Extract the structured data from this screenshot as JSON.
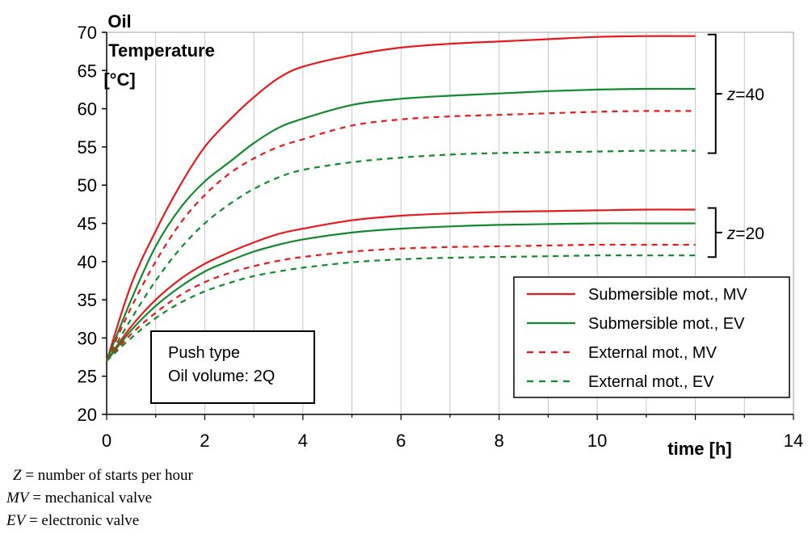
{
  "chart_data": {
    "type": "line",
    "ylabel_lines": [
      "Oil",
      "Temperature",
      "[°C]"
    ],
    "xlabel": "time [h]",
    "xlim": [
      0,
      14
    ],
    "ylim": [
      20,
      70
    ],
    "xticks": [
      "0",
      "2",
      "4",
      "6",
      "8",
      "10",
      "14"
    ],
    "yticks": [
      "20",
      "25",
      "30",
      "35",
      "40",
      "45",
      "50",
      "55",
      "60",
      "65",
      "70"
    ],
    "grid": "vertical",
    "groups": [
      {
        "label_prefix": "z",
        "label_value": "=40",
        "series": [
          {
            "name": "Submersible mot., MV",
            "color": "#e8191c",
            "dash": false,
            "x": [
              0,
              0.5,
              1,
              1.5,
              2,
              2.5,
              3,
              3.5,
              4,
              5,
              6,
              7,
              8,
              9,
              10,
              11,
              12
            ],
            "y": [
              27,
              37,
              44,
              50,
              55,
              58.5,
              61.5,
              64,
              65.5,
              67,
              68,
              68.5,
              68.8,
              69.1,
              69.4,
              69.5,
              69.5
            ]
          },
          {
            "name": "Submersible mot., EV",
            "color": "#108a2c",
            "dash": false,
            "x": [
              0,
              0.5,
              1,
              1.5,
              2,
              2.5,
              3,
              3.5,
              4,
              5,
              6,
              7,
              8,
              9,
              10,
              11,
              12
            ],
            "y": [
              27,
              35,
              42,
              47,
              50.5,
              53,
              55.5,
              57.5,
              58.7,
              60.5,
              61.3,
              61.7,
              62,
              62.3,
              62.5,
              62.6,
              62.6
            ]
          },
          {
            "name": "External mot., MV",
            "color": "#e8191c",
            "dash": true,
            "x": [
              0,
              0.5,
              1,
              1.5,
              2,
              2.5,
              3,
              3.5,
              4,
              5,
              6,
              7,
              8,
              9,
              10,
              11,
              12
            ],
            "y": [
              27,
              34,
              40,
              45,
              48.7,
              51.5,
              53.5,
              55,
              56,
              57.8,
              58.6,
              59,
              59.2,
              59.4,
              59.6,
              59.7,
              59.7
            ]
          },
          {
            "name": "External mot., EV",
            "color": "#108a2c",
            "dash": true,
            "x": [
              0,
              0.5,
              1,
              1.5,
              2,
              2.5,
              3,
              3.5,
              4,
              5,
              6,
              7,
              8,
              9,
              10,
              11,
              12
            ],
            "y": [
              27,
              32.5,
              37.5,
              41.7,
              45,
              47.5,
              49.5,
              51,
              52,
              53,
              53.6,
              54,
              54.2,
              54.3,
              54.4,
              54.5,
              54.5
            ]
          }
        ]
      },
      {
        "label_prefix": "z",
        "label_value": "=20",
        "series": [
          {
            "name": "Submersible mot., MV",
            "color": "#e8191c",
            "dash": false,
            "x": [
              0,
              0.5,
              1,
              1.5,
              2,
              2.5,
              3,
              3.5,
              4,
              5,
              6,
              7,
              8,
              9,
              10,
              11,
              12
            ],
            "y": [
              27,
              31.5,
              35,
              37.7,
              39.7,
              41.2,
              42.5,
              43.6,
              44.3,
              45.4,
              46,
              46.3,
              46.5,
              46.6,
              46.7,
              46.8,
              46.8
            ]
          },
          {
            "name": "Submersible mot., EV",
            "color": "#108a2c",
            "dash": false,
            "x": [
              0,
              0.5,
              1,
              1.5,
              2,
              2.5,
              3,
              3.5,
              4,
              5,
              6,
              7,
              8,
              9,
              10,
              11,
              12
            ],
            "y": [
              27,
              31,
              34.2,
              36.7,
              38.7,
              40.1,
              41.3,
              42.2,
              42.9,
              43.8,
              44.3,
              44.6,
              44.8,
              44.9,
              45,
              45,
              45
            ]
          },
          {
            "name": "External mot., MV",
            "color": "#e8191c",
            "dash": true,
            "x": [
              0,
              0.5,
              1,
              1.5,
              2,
              2.5,
              3,
              3.5,
              4,
              5,
              6,
              7,
              8,
              9,
              10,
              11,
              12
            ],
            "y": [
              27,
              30.5,
              33.3,
              35.6,
              37.3,
              38.5,
              39.4,
              40.1,
              40.6,
              41.3,
              41.7,
              41.9,
              42,
              42.1,
              42.2,
              42.2,
              42.2
            ]
          },
          {
            "name": "External mot., EV",
            "color": "#108a2c",
            "dash": true,
            "x": [
              0,
              0.5,
              1,
              1.5,
              2,
              2.5,
              3,
              3.5,
              4,
              5,
              6,
              7,
              8,
              9,
              10,
              11,
              12
            ],
            "y": [
              27,
              30,
              32.6,
              34.6,
              36.1,
              37.2,
              38.1,
              38.7,
              39.2,
              39.9,
              40.3,
              40.5,
              40.6,
              40.7,
              40.8,
              40.8,
              40.8
            ]
          }
        ]
      }
    ],
    "legend": {
      "placement": "lower-right",
      "entries": [
        {
          "label": "Submersible mot., MV",
          "color": "#e8191c",
          "dash": false
        },
        {
          "label": "Submersible mot., EV",
          "color": "#108a2c",
          "dash": false
        },
        {
          "label": "External mot., MV",
          "color": "#e8191c",
          "dash": true
        },
        {
          "label": "External mot., EV",
          "color": "#108a2c",
          "dash": true
        }
      ]
    },
    "annotation_box": {
      "placement": "lower-left",
      "lines": [
        "Push type",
        "Oil volume: 2Q"
      ]
    }
  },
  "footnotes": [
    {
      "symbol": "Z",
      "text": " = number of starts per hour"
    },
    {
      "symbol": "MV",
      "text": " = mechanical valve"
    },
    {
      "symbol": "EV",
      "text": " = electronic valve"
    }
  ]
}
